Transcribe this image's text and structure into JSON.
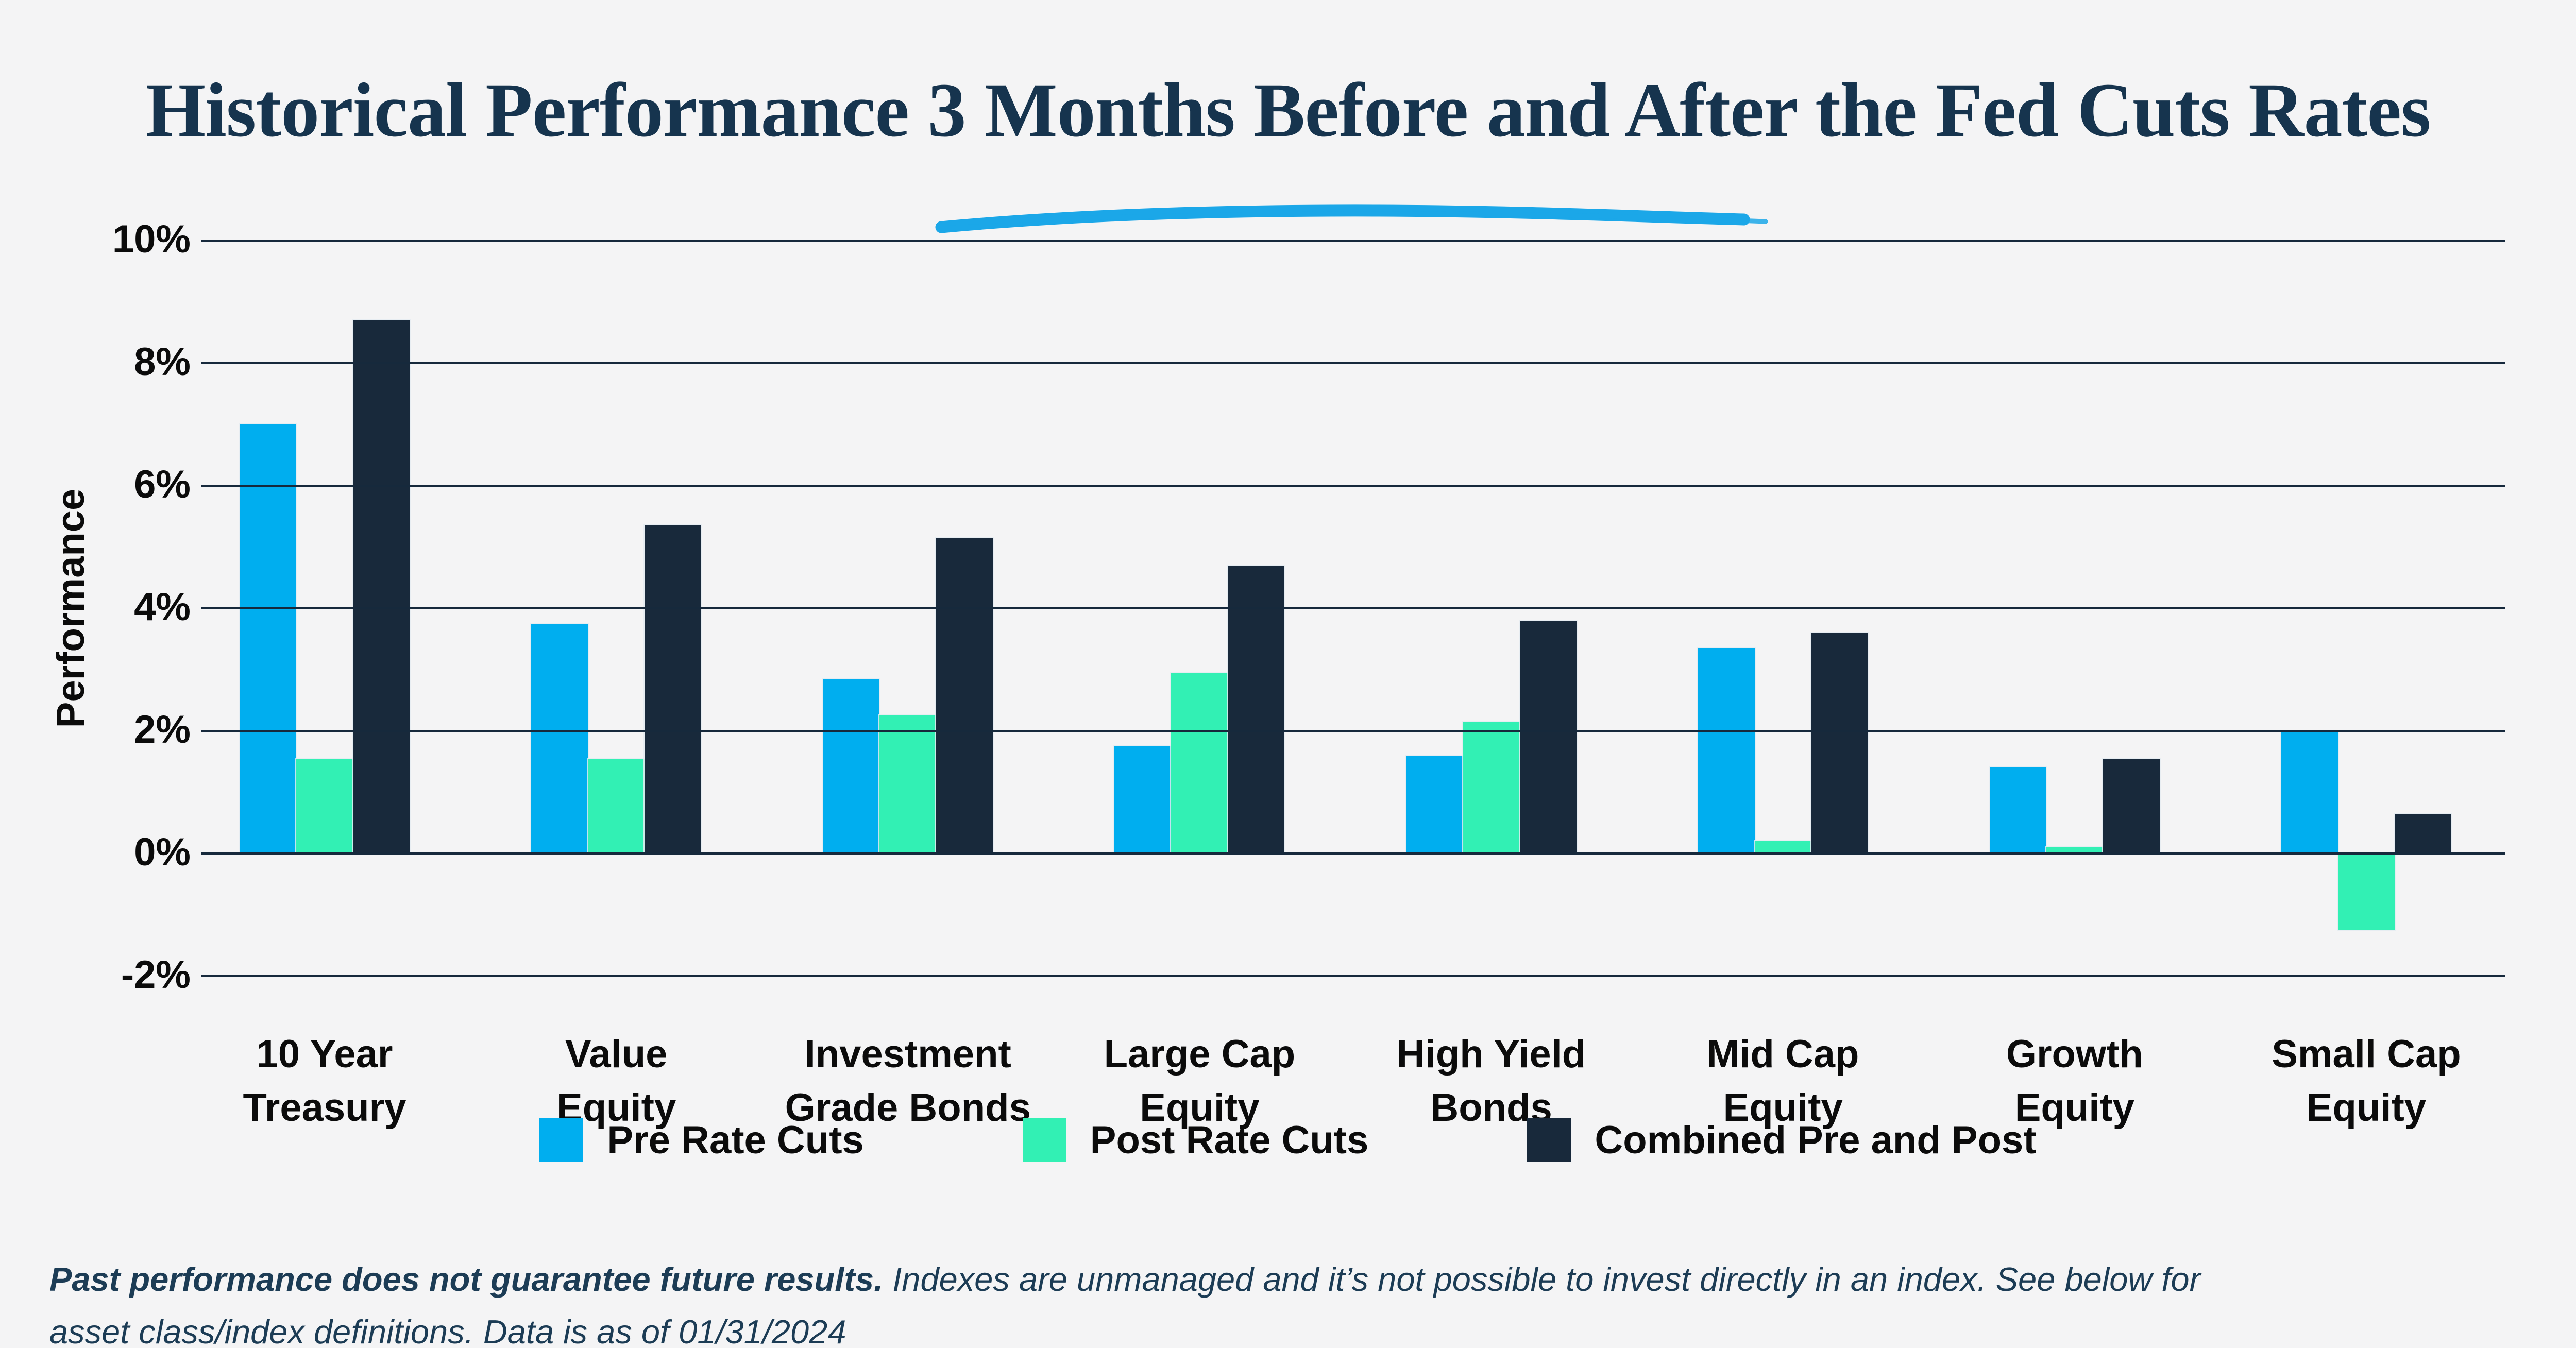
{
  "title": {
    "text": "Historical Performance 3 Months Before and After the Fed Cuts Rates",
    "color": "#16344E",
    "underline_color": "#1BA7E8"
  },
  "y_axis": {
    "label": "Performance",
    "tick_labels": [
      "10%",
      "8%",
      "6%",
      "4%",
      "2%",
      "0%",
      "-2%"
    ]
  },
  "chart_data": {
    "type": "bar",
    "title": "Historical Performance 3 Months Before and After the Fed Cuts Rates",
    "ylabel": "Performance",
    "ylim": [
      -2,
      10
    ],
    "ytick_values": [
      10,
      8,
      6,
      4,
      2,
      0,
      -2
    ],
    "grid": true,
    "legend_position": "bottom",
    "categories": [
      "10 Year\nTreasury",
      "Value\nEquity",
      "Investment\nGrade Bonds",
      "Large Cap\nEquity",
      "High Yield\nBonds",
      "Mid Cap\nEquity",
      "Growth\nEquity",
      "Small Cap\nEquity"
    ],
    "series": [
      {
        "name": "Pre Rate Cuts",
        "color": "#00AEEF",
        "values": [
          7.0,
          3.75,
          2.85,
          1.75,
          1.6,
          3.35,
          1.4,
          2.0
        ]
      },
      {
        "name": "Post Rate Cuts",
        "color": "#32F0B4",
        "values": [
          1.55,
          1.55,
          2.25,
          2.95,
          2.15,
          0.2,
          0.1,
          -1.25
        ]
      },
      {
        "name": "Combined Pre and Post",
        "color": "#18293B",
        "values": [
          8.7,
          5.35,
          5.15,
          4.7,
          3.8,
          3.6,
          1.55,
          0.65
        ]
      }
    ]
  },
  "footnote": {
    "line1_bold": "Past performance does not guarantee future results.",
    "line1_rest": " Indexes are unmanaged and it’s not possible to invest directly in an index. See below for",
    "line2": "asset class/index definitions. Data is as of 01/31/2024"
  }
}
